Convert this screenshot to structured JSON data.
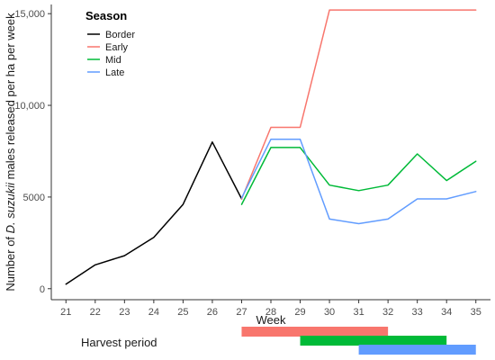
{
  "chart_data": {
    "type": "line",
    "xlabel": "Week",
    "ylabel_prefix": "Number of ",
    "ylabel_italic": "D. suzukii",
    "ylabel_suffix": " males released per ha per week",
    "x_ticks": [
      21,
      22,
      23,
      24,
      25,
      26,
      27,
      28,
      29,
      30,
      31,
      32,
      33,
      34,
      35
    ],
    "y_ticks": [
      0,
      5000,
      10000,
      15000
    ],
    "y_tick_labels": [
      "0",
      "5000",
      "10,000",
      "15,000"
    ],
    "xlim": [
      20.5,
      35.5
    ],
    "ylim": [
      -600,
      15500
    ],
    "grid": false,
    "legend": {
      "title": "Season",
      "position": "top-left"
    },
    "series": [
      {
        "name": "Border",
        "color": "#000000",
        "x": [
          21,
          22,
          23,
          24,
          25,
          26,
          27
        ],
        "y": [
          250,
          1300,
          1800,
          2800,
          4600,
          8000,
          4900
        ]
      },
      {
        "name": "Early",
        "color": "#f8766d",
        "x": [
          27,
          28,
          29,
          30,
          31,
          32,
          33,
          34,
          35
        ],
        "y": [
          4900,
          8800,
          8800,
          15200,
          15200,
          15200,
          15200,
          15200,
          15200
        ]
      },
      {
        "name": "Mid",
        "color": "#00ba38",
        "x": [
          27,
          28,
          29,
          30,
          31,
          32,
          33,
          34,
          35
        ],
        "y": [
          4600,
          7700,
          7700,
          5650,
          5350,
          5650,
          7350,
          5900,
          6950
        ]
      },
      {
        "name": "Late",
        "color": "#619cff",
        "x": [
          27,
          28,
          29,
          30,
          31,
          32,
          33,
          34,
          35
        ],
        "y": [
          4950,
          8150,
          8150,
          3800,
          3550,
          3800,
          4900,
          4900,
          5300
        ]
      }
    ],
    "harvest_period": {
      "label": "Harvest period",
      "bars": [
        {
          "season": "Early",
          "color": "#f8766d",
          "start_week": 27,
          "end_week": 32
        },
        {
          "season": "Mid",
          "color": "#00ba38",
          "start_week": 29,
          "end_week": 34
        },
        {
          "season": "Late",
          "color": "#619cff",
          "start_week": 31,
          "end_week": 35
        }
      ]
    }
  }
}
